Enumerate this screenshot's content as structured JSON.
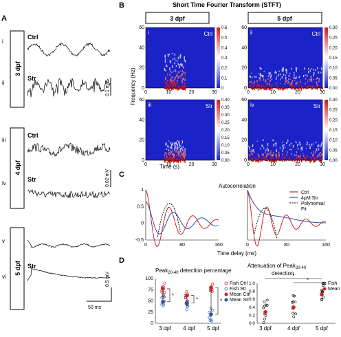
{
  "panels": {
    "a": "A",
    "b": "B",
    "c": "C",
    "d": "D"
  },
  "panel_a": {
    "groups": [
      {
        "label": "3 dpf",
        "rows": [
          {
            "roman": "i",
            "trace": "Ctrl"
          },
          {
            "roman": "ii",
            "trace": "Str"
          }
        ],
        "scale": "0.1 mV"
      },
      {
        "label": "4 dpf",
        "rows": [
          {
            "roman": "iii",
            "trace": "Ctrl"
          },
          {
            "roman": "iv",
            "trace": "Str"
          }
        ],
        "scale": "0.02 mV"
      },
      {
        "label": "5 dpf",
        "rows": [
          {
            "roman": "v",
            "trace": ""
          },
          {
            "roman": "vi",
            "trace": "Str"
          }
        ],
        "scale": "0.5 mV"
      }
    ],
    "time_scale": "50 ms"
  },
  "panel_b": {
    "title": "Short Time Fourier Transform (STFT)",
    "columns": [
      "3 dpf",
      "5 dpf"
    ],
    "ylabel": "Frequency (Hz)",
    "xlabel": "Time (s)",
    "x_ticks": [
      "0",
      "10",
      "20",
      "30"
    ],
    "y_ticks": [
      "0",
      "20",
      "40",
      "60"
    ],
    "plots": [
      {
        "roman": "i",
        "label": "Ctrl",
        "colorbar": [
          "0.6",
          "0.5",
          "0.4",
          "0.3",
          "0.2",
          "0.1",
          "0"
        ]
      },
      {
        "roman": "ii",
        "label": "Ctrl",
        "colorbar": [
          "0.30",
          "0.25",
          "0.20",
          "0.15",
          "0.10",
          "0.05",
          "0.00"
        ]
      },
      {
        "roman": "iii",
        "label": "Str",
        "colorbar": [
          "0.40",
          "0.35",
          "0.30",
          "0.25",
          "0.20",
          "0.15",
          "0.10",
          "0.05",
          "0.00"
        ]
      },
      {
        "roman": "iv",
        "label": "Str",
        "colorbar": [
          "0.30",
          "0.25",
          "0.20",
          "0.15",
          "0.10",
          "0.05",
          "0.00"
        ]
      }
    ],
    "colors": {
      "low": "#1a22c8",
      "high": "#d01818"
    }
  },
  "panel_c": {
    "title": "Autocorrelation",
    "xlabel": "Time delay (ms)",
    "x_ticks": [
      "0",
      "80",
      "160"
    ],
    "y_ticks": [
      "1",
      "0.5",
      "0",
      "-0.5"
    ],
    "legend": [
      "Ctrl",
      "4μM Str",
      "Polynomial",
      "Fit"
    ],
    "colors": {
      "ctrl": "#d42020",
      "str": "#2b4fa8",
      "fit": "#000000"
    }
  },
  "panel_d": {
    "left_title_pre": "Peak",
    "left_title_sub": "20-40",
    "left_title_post": " detection percentage",
    "right_title_pre": "Attenuation of Peak",
    "right_title_sub": "20-40",
    "right_title_line2": "detection",
    "left_y_ticks": [
      "100",
      "75",
      "50",
      "25",
      "0"
    ],
    "right_y_ticks": [
      "1.0",
      "0.8",
      "0.6",
      "0.4",
      "0.2",
      "0.0"
    ],
    "categories": [
      "3 dpf",
      "4 dpf",
      "5 dpf"
    ],
    "legend_left": [
      "Fish Ctrl",
      "Fish Str",
      "Mean Ctrl",
      "Mean Str"
    ],
    "legend_right": [
      "Fish",
      "Mean"
    ],
    "star": "*",
    "colors": {
      "ctrl": "#d42020",
      "str": "#2b4fa8"
    }
  }
}
